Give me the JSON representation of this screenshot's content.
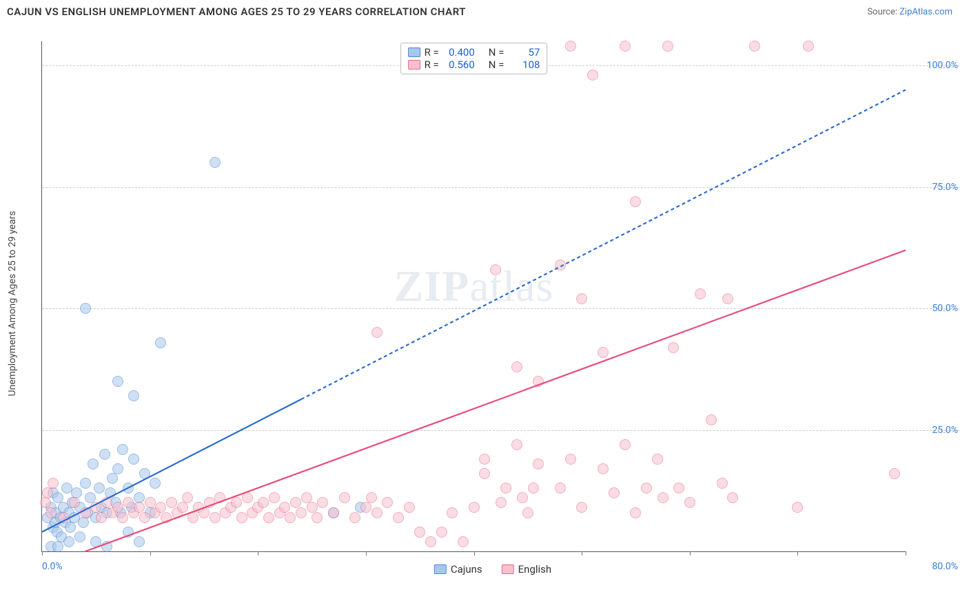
{
  "header": {
    "title": "CAJUN VS ENGLISH UNEMPLOYMENT AMONG AGES 25 TO 29 YEARS CORRELATION CHART",
    "source_label": "Source:",
    "source_link": "ZipAtlas.com"
  },
  "chart": {
    "type": "scatter",
    "ylabel": "Unemployment Among Ages 25 to 29 years",
    "watermark": "ZIPatlas",
    "xlim": [
      0,
      80
    ],
    "ylim": [
      0,
      105
    ],
    "xticks": [
      0,
      10,
      20,
      30,
      40,
      50,
      60,
      70,
      80
    ],
    "xtick_labels": {
      "0": "0.0%",
      "80": "80.0%"
    },
    "yticks": [
      25,
      50,
      75,
      100
    ],
    "ytick_labels": {
      "25": "25.0%",
      "50": "50.0%",
      "75": "75.0%",
      "100": "100.0%"
    },
    "background_color": "#ffffff",
    "grid_color": "#cccccc",
    "marker_radius": 8,
    "marker_opacity": 0.55,
    "marker_stroke_width": 1.2,
    "series": [
      {
        "name": "Cajuns",
        "label": "Cajuns",
        "fill_color": "#a8c7ec",
        "stroke_color": "#4a86d1",
        "trend_color": "#2b6bcf",
        "trend_width": 2.2,
        "trend_dash_after_x": 24,
        "R": "0.400",
        "N": "57",
        "trend": {
          "x1": 0,
          "y1": 4,
          "x2": 80,
          "y2": 95
        },
        "points": [
          [
            0.5,
            7
          ],
          [
            0.8,
            9
          ],
          [
            1,
            5
          ],
          [
            1,
            12
          ],
          [
            1.2,
            6
          ],
          [
            1.3,
            8
          ],
          [
            1.4,
            4
          ],
          [
            1.5,
            11
          ],
          [
            1.7,
            7
          ],
          [
            1.8,
            3
          ],
          [
            2,
            9
          ],
          [
            2.2,
            6
          ],
          [
            2.3,
            13
          ],
          [
            2.5,
            8
          ],
          [
            2.6,
            5
          ],
          [
            2.8,
            10
          ],
          [
            3,
            7
          ],
          [
            3.2,
            12
          ],
          [
            3.5,
            9
          ],
          [
            3.8,
            6
          ],
          [
            4,
            14
          ],
          [
            4.2,
            8
          ],
          [
            4.5,
            11
          ],
          [
            4.7,
            18
          ],
          [
            5,
            7
          ],
          [
            5.3,
            13
          ],
          [
            5.5,
            9
          ],
          [
            5.8,
            20
          ],
          [
            6,
            8
          ],
          [
            6.3,
            12
          ],
          [
            6.5,
            15
          ],
          [
            6.8,
            10
          ],
          [
            7,
            17
          ],
          [
            7.3,
            8
          ],
          [
            7.5,
            21
          ],
          [
            8,
            13
          ],
          [
            8.3,
            9
          ],
          [
            8.5,
            19
          ],
          [
            9,
            11
          ],
          [
            9.5,
            16
          ],
          [
            10,
            8
          ],
          [
            10.5,
            14
          ],
          [
            0.8,
            1
          ],
          [
            1.5,
            1
          ],
          [
            2.5,
            2
          ],
          [
            3.5,
            3
          ],
          [
            5,
            2
          ],
          [
            6,
            1
          ],
          [
            8,
            4
          ],
          [
            9,
            2
          ],
          [
            4,
            50
          ],
          [
            7,
            35
          ],
          [
            8.5,
            32
          ],
          [
            11,
            43
          ],
          [
            16,
            80
          ],
          [
            27,
            8
          ],
          [
            29.5,
            9
          ]
        ]
      },
      {
        "name": "English",
        "label": "English",
        "fill_color": "#f6c0cd",
        "stroke_color": "#e76b8a",
        "trend_color": "#e84c77",
        "trend_width": 2.2,
        "R": "0.560",
        "N": "108",
        "trend": {
          "x1": 4,
          "y1": 0,
          "x2": 80,
          "y2": 62
        },
        "points": [
          [
            0.3,
            10
          ],
          [
            0.5,
            12
          ],
          [
            0.8,
            8
          ],
          [
            1,
            14
          ],
          [
            2,
            7
          ],
          [
            3,
            10
          ],
          [
            4,
            8
          ],
          [
            5,
            9
          ],
          [
            5.5,
            7
          ],
          [
            6,
            10
          ],
          [
            6.5,
            8
          ],
          [
            7,
            9
          ],
          [
            7.5,
            7
          ],
          [
            8,
            10
          ],
          [
            8.5,
            8
          ],
          [
            9,
            9
          ],
          [
            9.5,
            7
          ],
          [
            10,
            10
          ],
          [
            10.5,
            8
          ],
          [
            11,
            9
          ],
          [
            11.5,
            7
          ],
          [
            12,
            10
          ],
          [
            12.5,
            8
          ],
          [
            13,
            9
          ],
          [
            13.5,
            11
          ],
          [
            14,
            7
          ],
          [
            14.5,
            9
          ],
          [
            15,
            8
          ],
          [
            15.5,
            10
          ],
          [
            16,
            7
          ],
          [
            16.5,
            11
          ],
          [
            17,
            8
          ],
          [
            17.5,
            9
          ],
          [
            18,
            10
          ],
          [
            18.5,
            7
          ],
          [
            19,
            11
          ],
          [
            19.5,
            8
          ],
          [
            20,
            9
          ],
          [
            20.5,
            10
          ],
          [
            21,
            7
          ],
          [
            21.5,
            11
          ],
          [
            22,
            8
          ],
          [
            22.5,
            9
          ],
          [
            23,
            7
          ],
          [
            23.5,
            10
          ],
          [
            24,
            8
          ],
          [
            24.5,
            11
          ],
          [
            25,
            9
          ],
          [
            25.5,
            7
          ],
          [
            26,
            10
          ],
          [
            27,
            8
          ],
          [
            28,
            11
          ],
          [
            29,
            7
          ],
          [
            30,
            9
          ],
          [
            30.5,
            11
          ],
          [
            31,
            8
          ],
          [
            32,
            10
          ],
          [
            33,
            7
          ],
          [
            34,
            9
          ],
          [
            35,
            4
          ],
          [
            36,
            2
          ],
          [
            37,
            4
          ],
          [
            38,
            8
          ],
          [
            39,
            2
          ],
          [
            40,
            9
          ],
          [
            31,
            45
          ],
          [
            41,
            16
          ],
          [
            41,
            19
          ],
          [
            42,
            58
          ],
          [
            42.5,
            10
          ],
          [
            43,
            13
          ],
          [
            44,
            22
          ],
          [
            44,
            38
          ],
          [
            44.5,
            11
          ],
          [
            45,
            8
          ],
          [
            45.5,
            13
          ],
          [
            46,
            18
          ],
          [
            46,
            35
          ],
          [
            48,
            13
          ],
          [
            48,
            59
          ],
          [
            49,
            19
          ],
          [
            49,
            104
          ],
          [
            50,
            9
          ],
          [
            50,
            52
          ],
          [
            51,
            98
          ],
          [
            52,
            17
          ],
          [
            52,
            41
          ],
          [
            53,
            12
          ],
          [
            54,
            22
          ],
          [
            54,
            104
          ],
          [
            55,
            8
          ],
          [
            55,
            72
          ],
          [
            56,
            13
          ],
          [
            57,
            19
          ],
          [
            57.5,
            11
          ],
          [
            58,
            104
          ],
          [
            58.5,
            42
          ],
          [
            59,
            13
          ],
          [
            60,
            10
          ],
          [
            61,
            53
          ],
          [
            62,
            27
          ],
          [
            63,
            14
          ],
          [
            63.5,
            52
          ],
          [
            64,
            11
          ],
          [
            66,
            104
          ],
          [
            70,
            9
          ],
          [
            71,
            104
          ],
          [
            79,
            16
          ]
        ]
      }
    ],
    "legend_top": {
      "rows": [
        {
          "swatch_fill": "#a8c7ec",
          "swatch_stroke": "#4a86d1",
          "r_label": "R =",
          "r_val": "0.400",
          "n_label": "N =",
          "n_val": "57"
        },
        {
          "swatch_fill": "#f6c0cd",
          "swatch_stroke": "#e76b8a",
          "r_label": "R =",
          "r_val": "0.560",
          "n_label": "N =",
          "n_val": "108"
        }
      ]
    },
    "legend_bottom": [
      {
        "swatch_fill": "#a8c7ec",
        "swatch_stroke": "#4a86d1",
        "label": "Cajuns"
      },
      {
        "swatch_fill": "#f6c0cd",
        "swatch_stroke": "#e76b8a",
        "label": "English"
      }
    ]
  }
}
